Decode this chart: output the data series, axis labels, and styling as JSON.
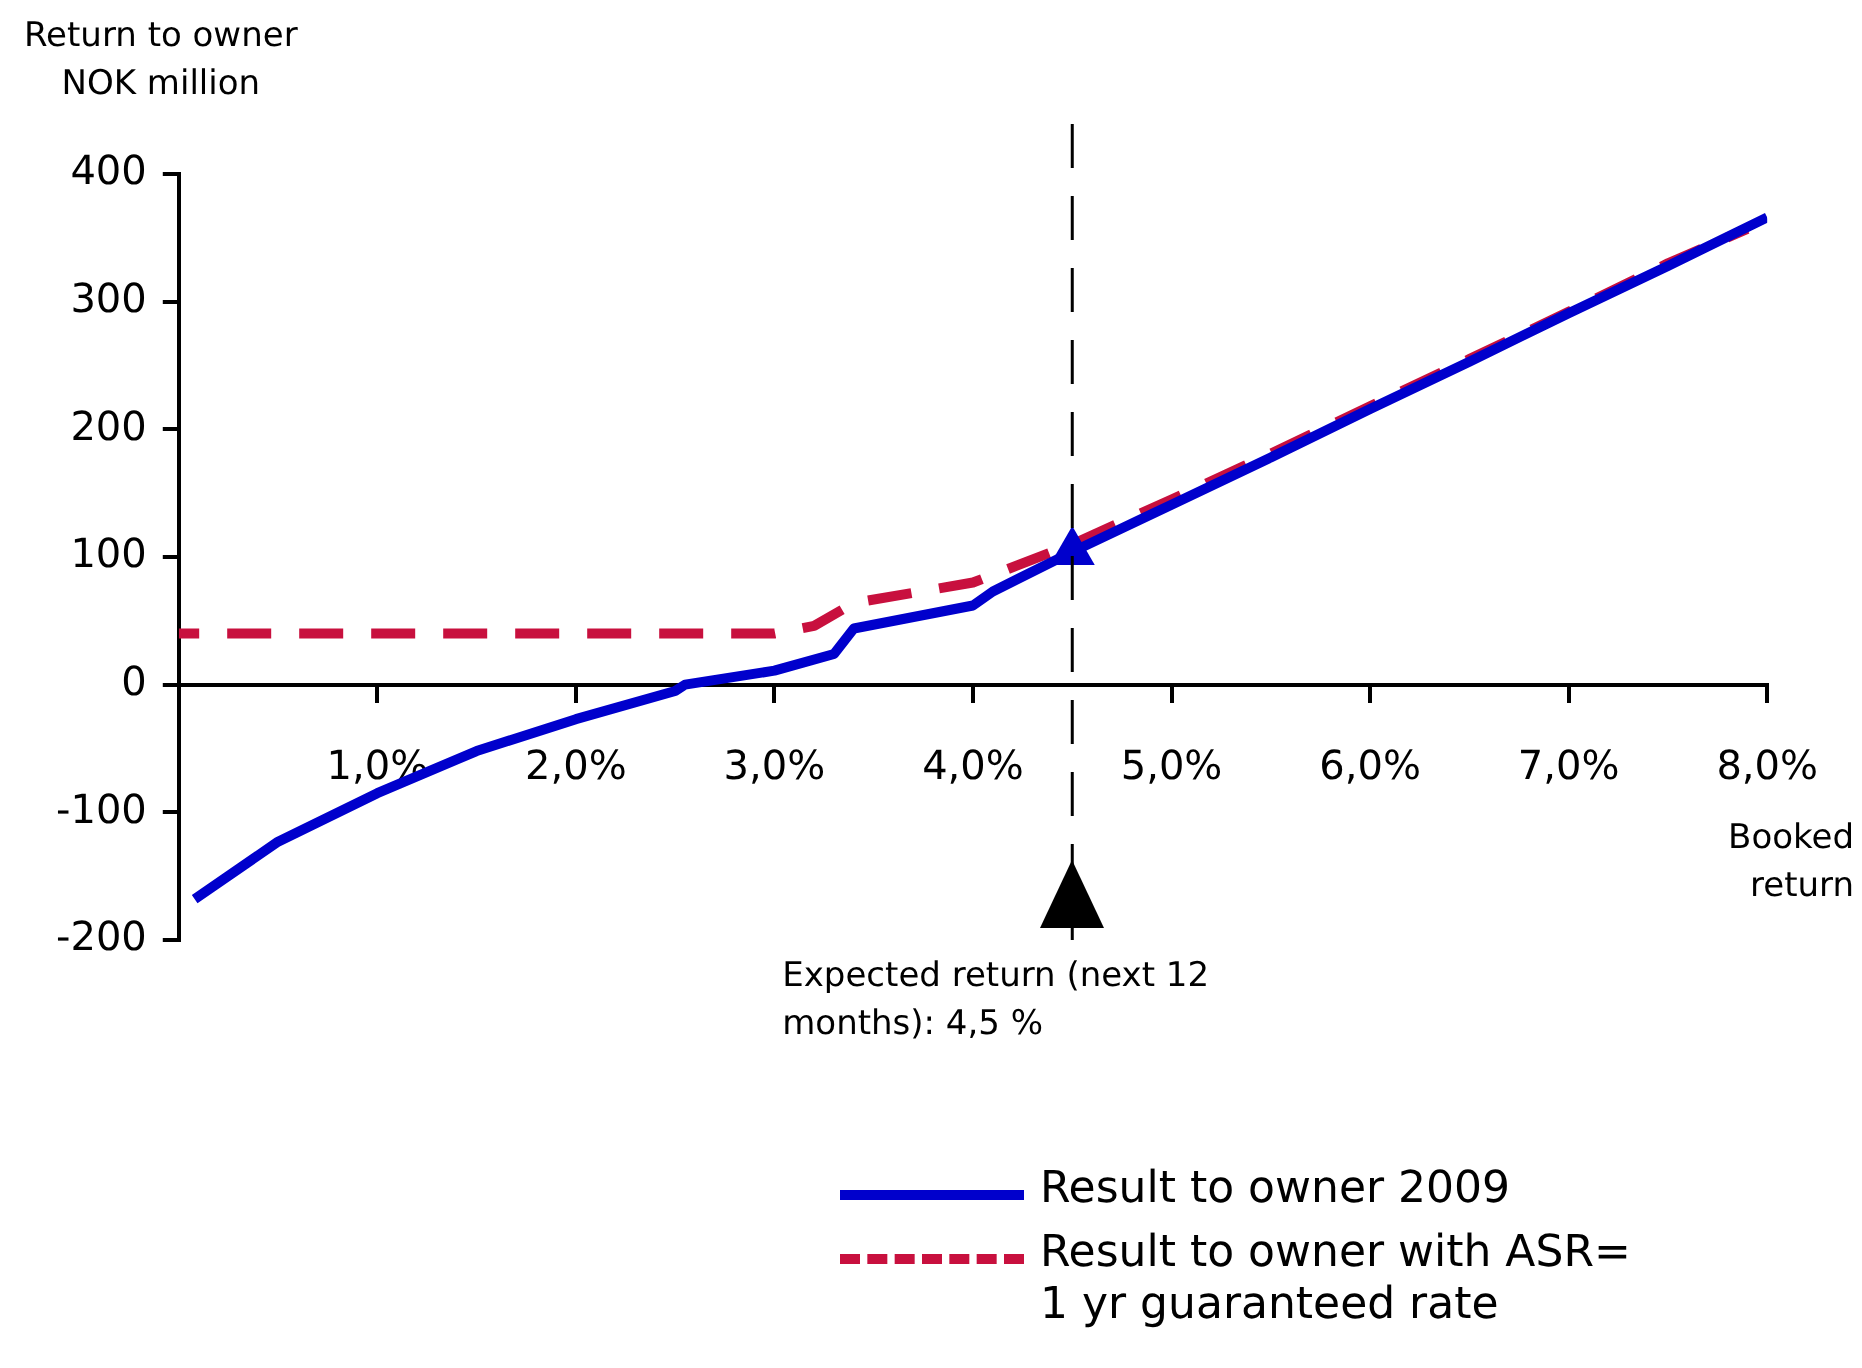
{
  "chart_data": {
    "type": "line",
    "ylabel": "Return to owner\nNOK million",
    "xlabel": "Booked\nreturn",
    "xlim": [
      0,
      8
    ],
    "xticks": [
      {
        "value": 1,
        "label": "1,0%"
      },
      {
        "value": 2,
        "label": "2,0%"
      },
      {
        "value": 3,
        "label": "3,0%"
      },
      {
        "value": 4,
        "label": "4,0%"
      },
      {
        "value": 5,
        "label": "5,0%"
      },
      {
        "value": 6,
        "label": "6,0%"
      },
      {
        "value": 7,
        "label": "7,0%"
      },
      {
        "value": 8,
        "label": "8,0%"
      }
    ],
    "ylim": [
      -200,
      400
    ],
    "yticks": [
      -200,
      -100,
      0,
      100,
      200,
      300,
      400
    ],
    "grid": false,
    "legend": "bottom",
    "marker": "none",
    "series": [
      {
        "name": "Result to owner 2009",
        "color": "#0000cc",
        "line_style": "solid",
        "x": [
          0.08,
          0.5,
          1.0,
          1.5,
          2.0,
          2.5,
          2.55,
          3.0,
          3.3,
          3.4,
          4.0,
          4.1,
          4.5,
          5.0,
          5.5,
          6.0,
          6.5,
          7.0,
          7.5,
          8.0
        ],
        "values": [
          -168,
          -123,
          -85,
          -52,
          -27,
          -5,
          0,
          11,
          24,
          44,
          62,
          73,
          104,
          141,
          178,
          216,
          253,
          291,
          328,
          366
        ]
      },
      {
        "name": "Result to owner with ASR= 1 yr guaranteed rate",
        "color": "#c8103e",
        "line_style": "dashed",
        "x": [
          0.0,
          3.0,
          3.2,
          3.4,
          3.7,
          4.0,
          4.5,
          5.0,
          5.5,
          6.0,
          6.5,
          7.0,
          7.5,
          7.9
        ],
        "values": [
          40,
          40,
          46,
          64,
          72,
          80,
          110,
          145,
          181,
          218,
          255,
          292,
          330,
          357
        ]
      },
      {
        "type": "scatter",
        "color": "#0000cc",
        "marker": "triangle",
        "x": [
          4.5
        ],
        "values": [
          104
        ]
      }
    ],
    "ref_lines": [
      {
        "axis": "x",
        "value": 4.5,
        "label": "Expected return (next 12 months): 4,5 %",
        "color": "#000000",
        "line_style": "dashed"
      }
    ]
  }
}
